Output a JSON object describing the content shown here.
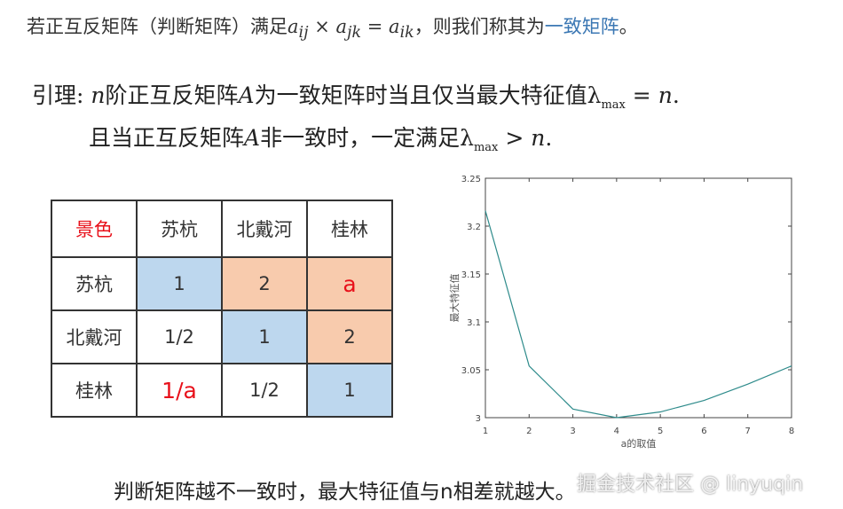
{
  "definition": {
    "prefix": "若正互反矩阵（判断矩阵）满足",
    "formula": "a_ij × a_jk = a_ik",
    "formula_parts": {
      "a1": "a",
      "s1": "ij",
      "op1": " × ",
      "a2": "a",
      "s2": "jk",
      "op2": " = ",
      "a3": "a",
      "s3": "ik"
    },
    "mid": "，则我们称其为",
    "link": "一致矩阵",
    "suffix": "。"
  },
  "lemma": {
    "line1": {
      "p1": "引理: ",
      "n1": "n",
      "p2": "阶正互反矩阵",
      "A": "A",
      "p3": "为一致矩阵时当且仅当最大特征值",
      "lambda": "λ",
      "sub": "max",
      "p4": " = ",
      "n2": "n",
      "p5": "."
    },
    "line2": {
      "p1": "且当正互反矩阵",
      "A": "A",
      "p2": "非一致时，一定满足",
      "lambda": "λ",
      "sub": "max",
      "p3": " > ",
      "n": "n",
      "p4": "."
    }
  },
  "matrix": {
    "header": [
      "景色",
      "苏杭",
      "北戴河",
      "桂林"
    ],
    "rows": [
      [
        "苏杭",
        "1",
        "2",
        "a"
      ],
      [
        "北戴河",
        "1/2",
        "1",
        "2"
      ],
      [
        "桂林",
        "1/a",
        "1/2",
        "1"
      ]
    ],
    "colors": {
      "diagonal": "#bdd7ee",
      "upper": "#f8cbad",
      "highlight_text": "#e8101a"
    }
  },
  "chart_data": {
    "type": "line",
    "title": "",
    "xlabel": "a的取值",
    "ylabel": "最大特征值",
    "x": [
      1,
      2,
      3,
      4,
      5,
      6,
      7,
      8
    ],
    "series": [
      {
        "name": "最大特征值",
        "values": [
          3.216,
          3.054,
          3.009,
          3.0,
          3.006,
          3.018,
          3.035,
          3.054
        ],
        "color": "#2e8b8b"
      }
    ],
    "xlim": [
      1,
      8
    ],
    "ylim": [
      3,
      3.25
    ],
    "xticks": [
      "1",
      "2",
      "3",
      "4",
      "5",
      "6",
      "7",
      "8"
    ],
    "yticks": [
      "3",
      "3.05",
      "3.1",
      "3.15",
      "3.2",
      "3.25"
    ],
    "grid": false,
    "legend": "none"
  },
  "caption": "判断矩阵越不一致时，最大特征值与n相差就越大。",
  "watermark": "掘金技术社区 @ linyuqin"
}
